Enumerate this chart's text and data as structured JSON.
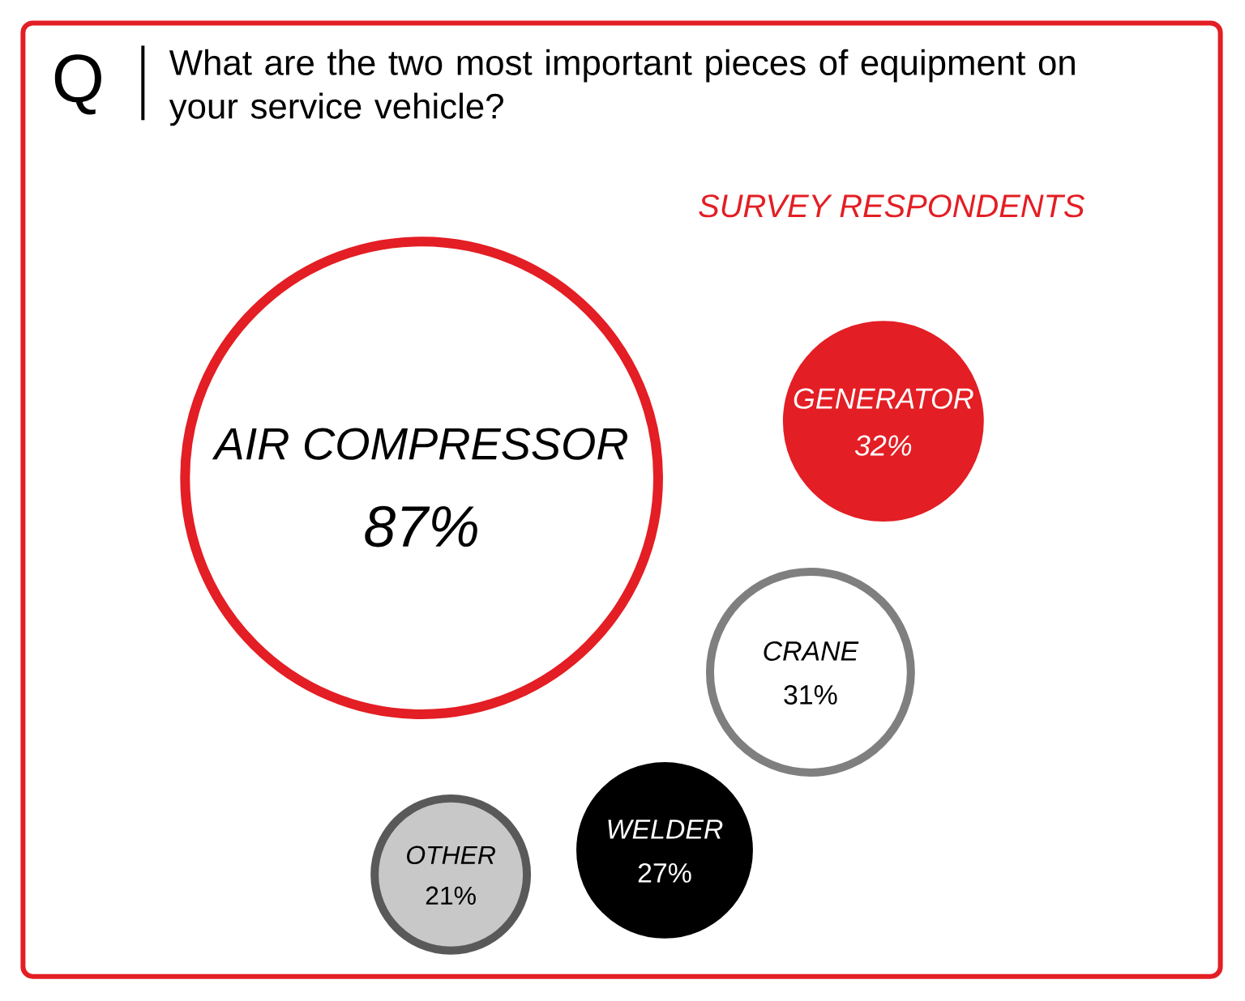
{
  "chart_data": {
    "type": "other",
    "title": "What are the two most important pieces of equipment on your service vehicle?",
    "subtitle": "SURVEY RESPONDENTS",
    "annotations": [
      "Q"
    ],
    "categories": [
      "AIR COMPRESSOR",
      "GENERATOR",
      "CRANE",
      "WELDER",
      "OTHER"
    ],
    "values": [
      87,
      32,
      31,
      27,
      21
    ],
    "value_labels": [
      "87%",
      "32%",
      "31%",
      "27%",
      "21%"
    ],
    "colors": [
      "#e31e24",
      "#e31e24",
      "#7f7f7f",
      "#000000",
      "#c8c8c8"
    ]
  }
}
